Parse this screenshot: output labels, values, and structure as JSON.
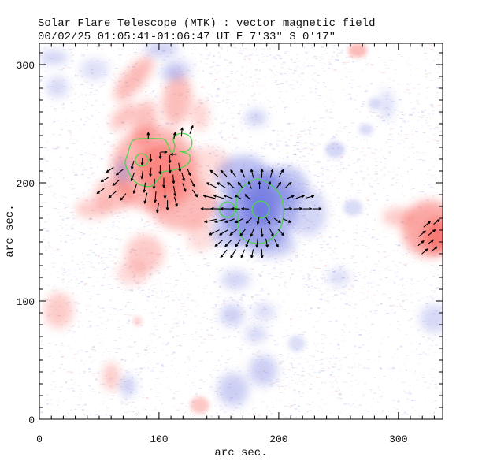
{
  "title": "Solar Flare Telescope (MTK) : vector magnetic field",
  "subtitle": "00/02/25  01:05:41-01:06:47 UT    E 7'33\"  S 0'17\"",
  "axes": {
    "xlabel": "arc sec.",
    "ylabel": "arc sec.",
    "xlim": [
      0,
      337
    ],
    "ylim": [
      0,
      318
    ],
    "xticks": [
      0,
      100,
      200,
      300
    ],
    "yticks": [
      0,
      100,
      200,
      300
    ],
    "minor_step": 10
  },
  "chart_data": {
    "type": "heatmap",
    "description": "Vector magnetogram map: red = positive polarity flux, blue = negative polarity flux, green contours = strong-field levels, black segments = transverse field vectors. Units arc sec.",
    "colors": {
      "background": "#ffffff",
      "axis": "#000000",
      "text": "#111111",
      "positive": "#f8574f",
      "negative": "#5a64dc",
      "contour": "#4ed44e",
      "vector": "#000000",
      "noise_blue": "#98a0ea",
      "noise_pink": "#f0a8a8"
    },
    "region_format": "[x, y, rx, ry, rotation_deg, opacity] in arc sec",
    "red_regions": [
      [
        96,
        212,
        36,
        36,
        0,
        0.42
      ],
      [
        101,
        213,
        20,
        20,
        0,
        0.5
      ],
      [
        79,
        288,
        23,
        9,
        -50,
        0.4
      ],
      [
        71,
        256,
        14,
        8,
        -45,
        0.34
      ],
      [
        88,
        250,
        10,
        20,
        10,
        0.36
      ],
      [
        115,
        270,
        12,
        22,
        8,
        0.38
      ],
      [
        134,
        257,
        8,
        13,
        0,
        0.24
      ],
      [
        63,
        190,
        17,
        14,
        0,
        0.36
      ],
      [
        45,
        178,
        15,
        8,
        0,
        0.3
      ],
      [
        120,
        183,
        29,
        23,
        0,
        0.4
      ],
      [
        140,
        215,
        20,
        15,
        0,
        0.2
      ],
      [
        135,
        155,
        12,
        13,
        0,
        0.2
      ],
      [
        88,
        140,
        16,
        16,
        0,
        0.3
      ],
      [
        78,
        124,
        13,
        10,
        0,
        0.24
      ],
      [
        16,
        92,
        12,
        15,
        0,
        0.3
      ],
      [
        60,
        36,
        7,
        12,
        0,
        0.3
      ],
      [
        134,
        12,
        8,
        7,
        0,
        0.32
      ],
      [
        82,
        83,
        4,
        4,
        0,
        0.25
      ],
      [
        266,
        312,
        8,
        6,
        0,
        0.4
      ],
      [
        326,
        161,
        23,
        24,
        0,
        0.5
      ],
      [
        332,
        155,
        12,
        14,
        0,
        0.55
      ],
      [
        300,
        171,
        13,
        8,
        0,
        0.3
      ]
    ],
    "blue_regions": [
      [
        185,
        177,
        30,
        32,
        0,
        0.45
      ],
      [
        185,
        178,
        17,
        17,
        0,
        0.5
      ],
      [
        185,
        177,
        8,
        9,
        0,
        0.55
      ],
      [
        171,
        204,
        23,
        19,
        0,
        0.4
      ],
      [
        204,
        198,
        20,
        16,
        0,
        0.38
      ],
      [
        161,
        158,
        17,
        13,
        0,
        0.38
      ],
      [
        194,
        148,
        20,
        11,
        0,
        0.32
      ],
      [
        224,
        175,
        16,
        20,
        0,
        0.26
      ],
      [
        156,
        176,
        9,
        9,
        0,
        0.5
      ],
      [
        70,
        210,
        6,
        10,
        0,
        0.35
      ],
      [
        12,
        306,
        12,
        6,
        0,
        0.28
      ],
      [
        15,
        281,
        9,
        9,
        0,
        0.24
      ],
      [
        46,
        296,
        12,
        9,
        0,
        0.2
      ],
      [
        102,
        313,
        14,
        7,
        0,
        0.28
      ],
      [
        110,
        293,
        9,
        7,
        0,
        0.26
      ],
      [
        117,
        296,
        10,
        8,
        0,
        0.22
      ],
      [
        181,
        255,
        9,
        7,
        0,
        0.28
      ],
      [
        280,
        267,
        5,
        5,
        0,
        0.22
      ],
      [
        273,
        245,
        6,
        5,
        0,
        0.22
      ],
      [
        247,
        228,
        8,
        7,
        0,
        0.26
      ],
      [
        262,
        179,
        8,
        7,
        0,
        0.22
      ],
      [
        290,
        266,
        6,
        13,
        0,
        0.2
      ],
      [
        164,
        118,
        12,
        8,
        0,
        0.26
      ],
      [
        161,
        88,
        10,
        9,
        0,
        0.3
      ],
      [
        188,
        91,
        9,
        7,
        0,
        0.22
      ],
      [
        181,
        72,
        9,
        7,
        0,
        0.25
      ],
      [
        187,
        41,
        12,
        13,
        0,
        0.3
      ],
      [
        162,
        25,
        13,
        14,
        0,
        0.3
      ],
      [
        74,
        28,
        6,
        9,
        0,
        0.32
      ],
      [
        215,
        64,
        7,
        7,
        0,
        0.2
      ],
      [
        250,
        120,
        9,
        7,
        0,
        0.22
      ],
      [
        330,
        85,
        12,
        12,
        0,
        0.24
      ]
    ],
    "contours": {
      "color": "#4ed44e",
      "red_main_loop": [
        [
          73.7,
          224
        ],
        [
          77.6,
          235.3
        ],
        [
          85.5,
          237.3
        ],
        [
          98.7,
          237.3
        ],
        [
          105.3,
          236
        ],
        [
          110.5,
          225.3
        ],
        [
          113.2,
          230.7
        ],
        [
          111.8,
          237.3
        ],
        [
          115.8,
          241.3
        ],
        [
          122.4,
          241.3
        ],
        [
          127,
          237.3
        ],
        [
          127,
          230.7
        ],
        [
          122.4,
          226.7
        ],
        [
          117.1,
          226.7
        ],
        [
          125,
          224
        ],
        [
          125.7,
          218.7
        ],
        [
          122.4,
          214.7
        ],
        [
          116.4,
          212
        ],
        [
          108.6,
          210
        ],
        [
          103.3,
          209.3
        ],
        [
          101.3,
          205.3
        ],
        [
          98,
          201.3
        ],
        [
          93.4,
          197.3
        ],
        [
          87.5,
          197.3
        ],
        [
          80.3,
          200.7
        ],
        [
          75,
          208
        ],
        [
          71.7,
          216.7
        ]
      ],
      "blue_main_loop": [
        [
          182.2,
          203.3
        ],
        [
          174.3,
          200
        ],
        [
          167.8,
          193.3
        ],
        [
          164.5,
          183.3
        ],
        [
          165.8,
          172.7
        ],
        [
          166.4,
          162.7
        ],
        [
          169.7,
          153.3
        ],
        [
          177.6,
          149.3
        ],
        [
          187.5,
          149.3
        ],
        [
          196.1,
          154.7
        ],
        [
          202,
          163.3
        ],
        [
          203.9,
          174.7
        ],
        [
          202.6,
          186
        ],
        [
          198.7,
          193.3
        ],
        [
          190.8,
          200
        ]
      ],
      "circles": [
        {
          "name": "red-inner",
          "x": 85.5,
          "y": 219.3,
          "r": 5.3
        },
        {
          "name": "blue-inner",
          "x": 184.9,
          "y": 177.3,
          "r": 7.2
        },
        {
          "name": "blue-left",
          "x": 157.2,
          "y": 177.3,
          "r": 6.6
        }
      ]
    },
    "vector_format": "[x, y, angle_deg_ccw_from_east, length] in arc sec",
    "vectors_red_region": [
      [
        59,
        211,
        215,
        7
      ],
      [
        55,
        203,
        210,
        8
      ],
      [
        64,
        200,
        220,
        7
      ],
      [
        51,
        193,
        215,
        7
      ],
      [
        61,
        190,
        222,
        8
      ],
      [
        70,
        188,
        230,
        7
      ],
      [
        67,
        209,
        218,
        7
      ],
      [
        78,
        215,
        255,
        7
      ],
      [
        86,
        218,
        268,
        6
      ],
      [
        93,
        221,
        270,
        6
      ],
      [
        101,
        223,
        275,
        5
      ],
      [
        109,
        220,
        270,
        6
      ],
      [
        78,
        205,
        250,
        7
      ],
      [
        86,
        207,
        262,
        7
      ],
      [
        93,
        209,
        265,
        7
      ],
      [
        101,
        211,
        270,
        7
      ],
      [
        109,
        212,
        275,
        7
      ],
      [
        117,
        213,
        280,
        7
      ],
      [
        80,
        195,
        252,
        8
      ],
      [
        88,
        196,
        262,
        8
      ],
      [
        96,
        199,
        265,
        8
      ],
      [
        104,
        200,
        270,
        8
      ],
      [
        112,
        203,
        275,
        7
      ],
      [
        120,
        205,
        285,
        7
      ],
      [
        89,
        187,
        257,
        9
      ],
      [
        97,
        188,
        265,
        9
      ],
      [
        105,
        191,
        270,
        8
      ],
      [
        113,
        193,
        280,
        8
      ],
      [
        121,
        196,
        290,
        7
      ],
      [
        99,
        179,
        260,
        8
      ],
      [
        107,
        181,
        270,
        8
      ],
      [
        114,
        184,
        285,
        8
      ],
      [
        128,
        200,
        300,
        7
      ],
      [
        130,
        191,
        305,
        7
      ],
      [
        125,
        209,
        295,
        6
      ],
      [
        104,
        226,
        0,
        5
      ],
      [
        112,
        224,
        180,
        5
      ],
      [
        119,
        243,
        85,
        7
      ],
      [
        127,
        245,
        70,
        7
      ],
      [
        113,
        240,
        80,
        5
      ],
      [
        91,
        240,
        90,
        5
      ]
    ],
    "vectors_blue_region": [
      [
        146,
        208,
        141,
        8
      ],
      [
        154,
        208,
        135,
        7
      ],
      [
        162,
        208,
        127,
        7
      ],
      [
        170,
        208,
        116,
        7
      ],
      [
        178,
        208,
        103,
        7
      ],
      [
        186,
        208,
        88,
        7
      ],
      [
        194,
        208,
        74,
        7
      ],
      [
        202,
        208,
        61,
        7
      ],
      [
        144,
        198,
        153,
        9
      ],
      [
        152,
        198,
        148,
        8
      ],
      [
        160,
        198,
        140,
        7
      ],
      [
        168,
        198,
        129,
        6
      ],
      [
        176,
        198,
        113,
        6
      ],
      [
        184,
        198,
        92,
        6
      ],
      [
        192,
        198,
        72,
        6
      ],
      [
        200,
        198,
        54,
        6
      ],
      [
        208,
        198,
        42,
        7
      ],
      [
        142,
        188,
        166,
        10
      ],
      [
        150,
        188,
        163,
        9
      ],
      [
        158,
        188,
        158,
        8
      ],
      [
        166,
        188,
        150,
        6
      ],
      [
        174,
        188,
        135,
        6
      ],
      [
        210,
        188,
        24,
        6
      ],
      [
        218,
        188,
        18,
        7
      ],
      [
        226,
        188,
        15,
        7
      ],
      [
        140,
        178,
        179,
        10
      ],
      [
        148,
        178,
        178,
        9
      ],
      [
        156,
        178,
        178,
        9
      ],
      [
        164,
        178,
        177,
        7
      ],
      [
        172,
        178,
        176,
        6
      ],
      [
        208,
        178,
        2,
        6
      ],
      [
        216,
        178,
        2,
        7
      ],
      [
        224,
        178,
        1,
        7
      ],
      [
        232,
        178,
        1,
        7
      ],
      [
        143,
        168,
        192,
        10
      ],
      [
        151,
        168,
        195,
        9
      ],
      [
        159,
        168,
        199,
        8
      ],
      [
        167,
        168,
        207,
        7
      ],
      [
        175,
        168,
        222,
        6
      ],
      [
        183,
        168,
        257,
        6
      ],
      [
        191,
        168,
        304,
        6
      ],
      [
        199,
        168,
        327,
        6
      ],
      [
        207,
        168,
        338,
        7
      ],
      [
        146,
        158,
        206,
        9
      ],
      [
        154,
        158,
        211,
        8
      ],
      [
        162,
        158,
        220,
        7
      ],
      [
        170,
        158,
        232,
        7
      ],
      [
        178,
        158,
        250,
        7
      ],
      [
        186,
        158,
        273,
        7
      ],
      [
        194,
        158,
        295,
        7
      ],
      [
        202,
        158,
        312,
        7
      ],
      [
        150,
        149,
        219,
        8
      ],
      [
        158,
        149,
        226,
        8
      ],
      [
        166,
        149,
        236,
        7
      ],
      [
        174,
        149,
        248,
        7
      ],
      [
        182,
        149,
        264,
        7
      ],
      [
        190,
        149,
        280,
        7
      ],
      [
        198,
        149,
        295,
        7
      ],
      [
        154,
        140,
        230,
        8
      ],
      [
        162,
        140,
        238,
        8
      ],
      [
        170,
        140,
        248,
        7
      ],
      [
        178,
        140,
        259,
        7
      ],
      [
        186,
        140,
        272,
        7
      ]
    ],
    "vectors_right_region": [
      [
        324,
        165,
        40,
        7
      ],
      [
        332,
        167,
        38,
        6
      ],
      [
        320,
        157,
        42,
        7
      ],
      [
        328,
        158,
        38,
        7
      ],
      [
        319,
        149,
        40,
        6
      ],
      [
        327,
        150,
        38,
        6
      ],
      [
        322,
        142,
        42,
        6
      ],
      [
        330,
        144,
        38,
        6
      ]
    ]
  }
}
